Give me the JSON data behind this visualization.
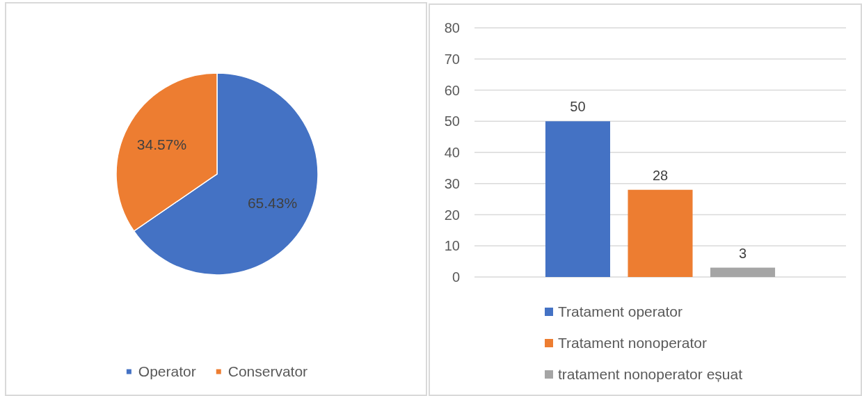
{
  "chart_data": [
    {
      "type": "pie",
      "categories": [
        "Operator",
        "Conservator"
      ],
      "values": [
        65.43,
        34.57
      ],
      "colors": [
        "#4472c4",
        "#ed7d31"
      ],
      "value_labels": [
        "65.43%",
        "34.57%"
      ],
      "legend": "bottom"
    },
    {
      "type": "bar",
      "categories": [
        null
      ],
      "series": [
        {
          "name": "Tratament operator",
          "color": "#4472c4",
          "values": [
            50
          ]
        },
        {
          "name": "Tratament nonoperator",
          "color": "#ed7d31",
          "values": [
            28
          ]
        },
        {
          "name": "tratament nonoperator eșuat",
          "color": "#a5a5a5",
          "values": [
            3
          ]
        }
      ],
      "ylim": [
        0,
        80
      ],
      "yticks": [
        0,
        10,
        20,
        30,
        40,
        50,
        60,
        70,
        80
      ],
      "grid": "y",
      "data_labels": true,
      "legend": "bottom"
    }
  ]
}
